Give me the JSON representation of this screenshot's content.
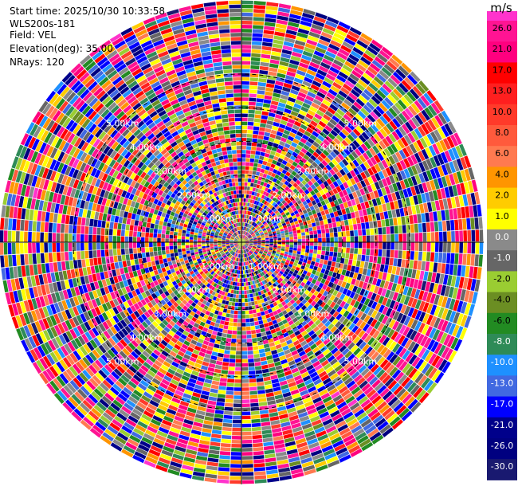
{
  "header": {
    "start_time": "Start time: 2025/10/30 10:33:58",
    "device": "WLS200s-181",
    "field": "Field: VEL",
    "elevation": "Elevation(deg): 35.00",
    "nrays": "NRays: 120"
  },
  "chart_data": {
    "type": "heatmap",
    "subtype": "polar-ppi",
    "field": "VEL",
    "unit": "m/s",
    "n_rays": 120,
    "elevation_deg": 35.0,
    "range_rings_km": [
      1,
      2,
      3,
      4,
      5
    ],
    "ring_labels": [
      "1.00km",
      "2.00km",
      "3.00km",
      "4.00km",
      "5.00km"
    ],
    "max_range_km": 7.2,
    "colorbar": {
      "ticks": [
        "26.0",
        "21.0",
        "17.0",
        "13.0",
        "10.0",
        "8.0",
        "6.0",
        "4.0",
        "2.0",
        "1.0",
        "0.0",
        "-1.0",
        "-2.0",
        "-4.0",
        "-6.0",
        "-8.0",
        "-10.0",
        "-13.0",
        "-17.0",
        "-21.0",
        "-26.0",
        "-30.0"
      ],
      "colors": [
        "#ff1493",
        "#ff007f",
        "#ff0000",
        "#ff1f1f",
        "#ff3a2a",
        "#ff5a3c",
        "#ff7a50",
        "#ff9500",
        "#ffcc00",
        "#ffff00",
        "#8a8a8a",
        "#666666",
        "#9acd32",
        "#6b8e23",
        "#228b22",
        "#2e8b57",
        "#1e90ff",
        "#4169e1",
        "#0000ff",
        "#00008b",
        "#000080",
        "#191970"
      ],
      "top_color": "#ff33cc"
    }
  }
}
